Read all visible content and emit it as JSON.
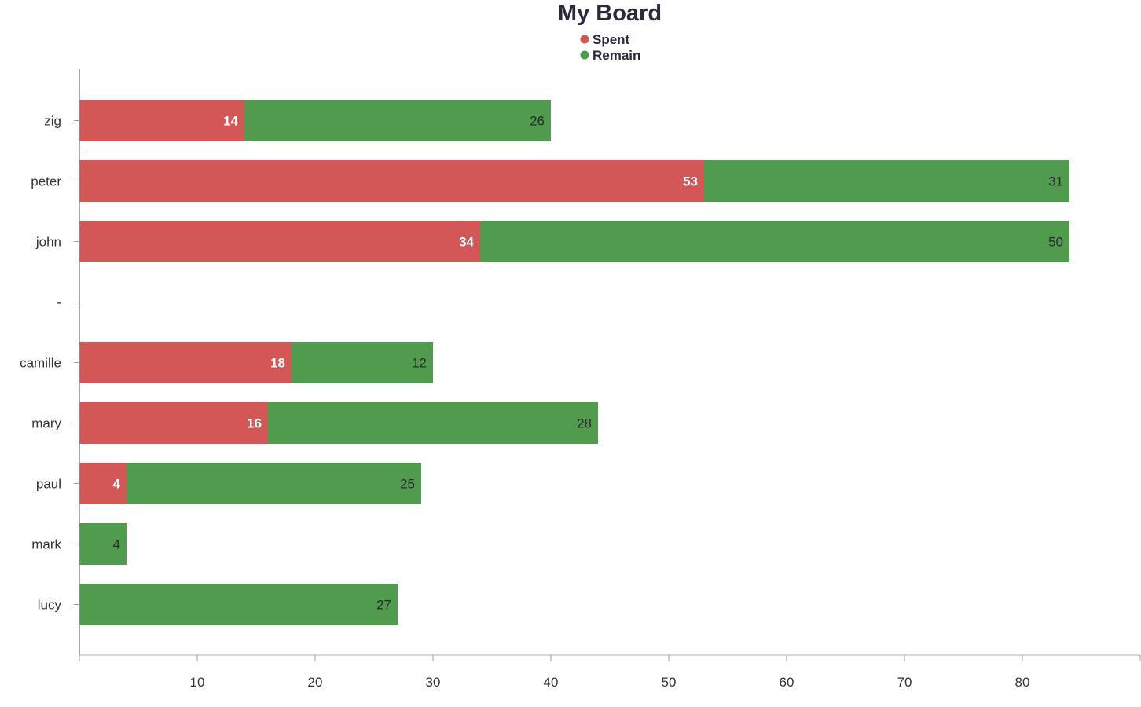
{
  "chart_data": {
    "type": "bar",
    "orientation": "horizontal",
    "stacked": true,
    "title": "My Board",
    "xlabel": "",
    "ylabel": "",
    "xlim": [
      0,
      90
    ],
    "x_ticks": [
      10,
      20,
      30,
      40,
      50,
      60,
      70,
      80
    ],
    "grid": false,
    "legend_position": "top-center",
    "categories": [
      "zig",
      "peter",
      "john",
      "-",
      "camille",
      "mary",
      "paul",
      "mark",
      "lucy"
    ],
    "series": [
      {
        "name": "Spent",
        "color": "#d35757",
        "values": [
          14,
          53,
          34,
          null,
          18,
          16,
          4,
          null,
          null
        ]
      },
      {
        "name": "Remain",
        "color": "#519b4f",
        "values": [
          26,
          31,
          50,
          null,
          12,
          28,
          25,
          4,
          27
        ]
      }
    ]
  }
}
